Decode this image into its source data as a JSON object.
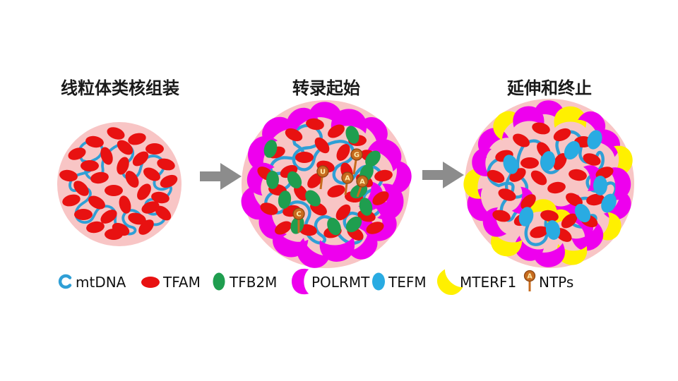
{
  "figure": {
    "panels": [
      {
        "id": "nucleoid-assembly",
        "title": "线粒体类核组装"
      },
      {
        "id": "transcription-initiation",
        "title": "转录起始"
      },
      {
        "id": "elongation-termination",
        "title": "延伸和终止"
      }
    ],
    "ntp_letters": [
      "G",
      "U",
      "A",
      "A",
      "C"
    ],
    "colors": {
      "background": "#ffffff",
      "nucleoid_bg": "#f8c5c5",
      "tfam_red": "#e81111",
      "tfb2m_green": "#1f9e4f",
      "polrmt_magenta": "#ee00ee",
      "tefm_cyan": "#29abe2",
      "mterf1_yellow": "#fff000",
      "mtdna_blue": "#2f9fd6",
      "ntp_orange": "#c76b1e",
      "ntp_outline": "#8a4512",
      "ntp_letter": "#ffe9a8",
      "arrow_gray": "#8c8c8c",
      "text_black": "#1a1a1a"
    }
  },
  "legend": {
    "items": [
      {
        "label": "mtDNA"
      },
      {
        "label": "TFAM"
      },
      {
        "label": "TFB2M"
      },
      {
        "label": "POLRMT"
      },
      {
        "label": "TEFM"
      },
      {
        "label": "MTERF1"
      },
      {
        "label": "NTPs"
      }
    ],
    "ntp_icon_letter": "A"
  }
}
